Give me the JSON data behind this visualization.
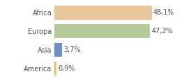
{
  "categories": [
    "Africa",
    "Europa",
    "Asia",
    "America"
  ],
  "values": [
    48.1,
    47.2,
    3.7,
    0.9
  ],
  "labels": [
    "48,1%",
    "47,2%",
    "3,7%",
    "0,9%"
  ],
  "bar_colors": [
    "#e8c99a",
    "#b5c99a",
    "#6e8fc9",
    "#e8c46e"
  ],
  "background_color": "#ffffff",
  "xlim": [
    0,
    58
  ],
  "bar_height": 0.75,
  "label_fontsize": 7.0,
  "tick_fontsize": 7.0,
  "figsize": [
    2.8,
    1.2
  ],
  "dpi": 100
}
